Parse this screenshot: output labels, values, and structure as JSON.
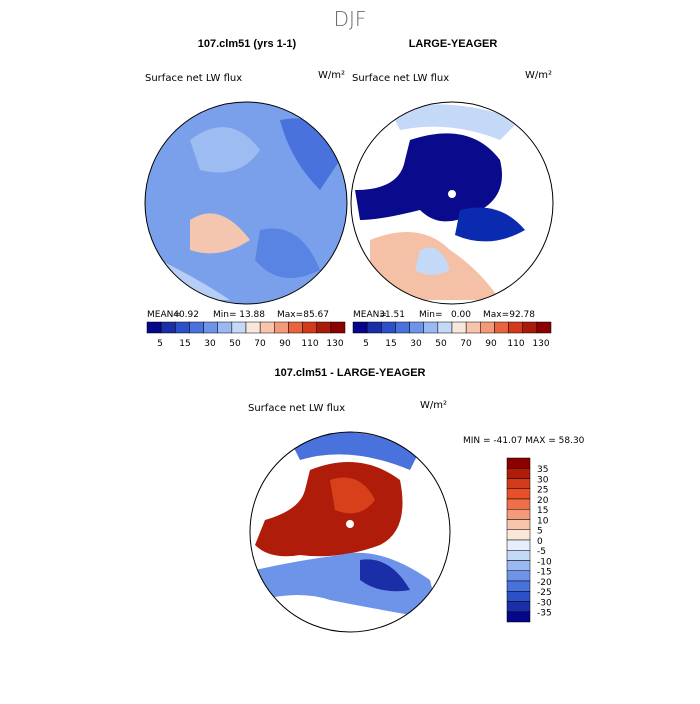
{
  "title": "DJF",
  "panels": [
    {
      "title": "107.clm51 (yrs 1-1)",
      "variable": "Surface net LW flux",
      "units": "W/m²",
      "stats": [
        {
          "label": "MEAN=",
          "value": "40.92"
        },
        {
          "label": "Min=",
          "value": "13.88"
        },
        {
          "label": "Max=",
          "value": "85.67"
        }
      ]
    },
    {
      "title": "LARGE-YEAGER",
      "variable": "Surface net LW flux",
      "units": "W/m²",
      "stats": [
        {
          "label": "MEAN=",
          "value": "31.51"
        },
        {
          "label": "Min=",
          "value": "0.00"
        },
        {
          "label": "Max=",
          "value": "92.78"
        }
      ]
    }
  ],
  "colorbar_labels": [
    5,
    15,
    30,
    50,
    70,
    90,
    110,
    130
  ],
  "difference": {
    "title": "107.clm51 - LARGE-YEAGER",
    "variable": "Surface net LW flux",
    "units": "W/m²",
    "stats": "MIN = -41.07 MAX =  58.30",
    "colorbar_labels": [
      35,
      30,
      25,
      20,
      15,
      10,
      5,
      0,
      -5,
      -10,
      -15,
      -20,
      -25,
      -30,
      -35
    ]
  }
}
